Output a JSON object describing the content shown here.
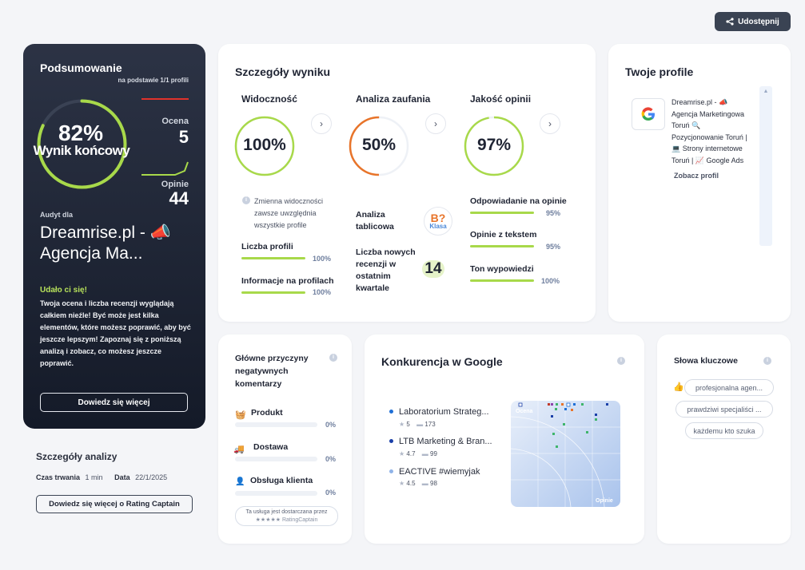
{
  "header": {
    "share_label": "Udostępnij"
  },
  "summary": {
    "title": "Podsumowanie",
    "subtitle": "na podstawie 1/1 profili",
    "score_pct": "82%",
    "score_label": "Wynik końcowy",
    "score_fraction": 0.82,
    "rating_label": "Ocena",
    "rating_value": "5",
    "reviews_label": "Opinie",
    "reviews_value": "44",
    "audit_label": "Audyt dla",
    "company": "Dreamrise.pl - 📣 Agencja Ma...",
    "success_title": "Udało ci się!",
    "description": "Twoja ocena i liczba recenzji wyglądają całkiem nieźle! Być może jest kilka elementów, które możesz poprawić, aby być jeszcze lepszym! Zapoznaj się z poniższą analizą i zobacz, co możesz jeszcze poprawić.",
    "more_button": "Dowiedz się więcej"
  },
  "analysis": {
    "title": "Szczegóły analizy",
    "duration_label": "Czas trwania",
    "duration_value": "1 min",
    "date_label": "Data",
    "date_value": "22/1/2025",
    "button": "Dowiedz się więcej o Rating Captain"
  },
  "score_details": {
    "title": "Szczegóły wyniku",
    "visibility": {
      "title": "Widoczność",
      "value": "100%",
      "fraction": 1.0,
      "note": "Zmienna widoczności zawsze uwzględnia wszystkie profile",
      "items": [
        {
          "label": "Liczba profili",
          "value": "100%",
          "fraction": 1.0
        },
        {
          "label": "Informacje na profilach",
          "value": "100%",
          "fraction": 1.0
        }
      ]
    },
    "trust": {
      "title": "Analiza zaufania",
      "value": "50%",
      "fraction": 0.5,
      "table_label": "Analiza tablicowa",
      "class_value": "B?",
      "class_label": "Klasa",
      "new_reviews_label": "Liczba nowych recenzji w ostatnim kwartale",
      "new_reviews_value": "14"
    },
    "quality": {
      "title": "Jakość opinii",
      "value": "97%",
      "fraction": 0.97,
      "items": [
        {
          "label": "Odpowiadanie na opinie",
          "value": "95%",
          "fraction": 0.95
        },
        {
          "label": "Opinie z tekstem",
          "value": "95%",
          "fraction": 0.95
        },
        {
          "label": "Ton wypowiedzi",
          "value": "100%",
          "fraction": 1.0
        }
      ]
    }
  },
  "profiles": {
    "title": "Twoje profile",
    "items": [
      {
        "name": "Dreamrise.pl - 📣 Agencja Marketingowa Toruń 🔍 Pozycjonowanie Toruń | 💻 Strony internetowe Toruń | 📈 Google Ads",
        "link": "Zobacz profil"
      }
    ]
  },
  "negatives": {
    "title": "Główne przyczyny negatywnych komentarzy",
    "items": [
      {
        "label": "Produkt",
        "value": "0%"
      },
      {
        "label": "Dostawa",
        "value": "0%"
      },
      {
        "label": "Obsługa klienta",
        "value": "0%"
      }
    ],
    "footer_line1": "Ta usługa jest dostarczana przez",
    "footer_line2": "★★★★★ RatingCaptain"
  },
  "competition": {
    "title": "Konkurencja w Google",
    "items": [
      {
        "name": "Laboratorium Strateg...",
        "rating": "5",
        "reviews": "173",
        "color": "#1f6fd6"
      },
      {
        "name": "LTB Marketing & Bran...",
        "rating": "4.7",
        "reviews": "99",
        "color": "#1a3fa8"
      },
      {
        "name": "EACTIVE #wiemyjak",
        "rating": "4.5",
        "reviews": "98",
        "color": "#8fb3e8"
      }
    ],
    "chart_y_label": "Ocena",
    "chart_x_label": "Opinie"
  },
  "keywords": {
    "title": "Słowa kluczowe",
    "items": [
      "profesjonalna agen...",
      "prawdziwi specjaliści ...",
      "każdemu kto szuka"
    ]
  },
  "colors": {
    "accent_green": "#a8d94a",
    "trust_orange": "#e8742a",
    "dark_card": "#1c2232"
  }
}
